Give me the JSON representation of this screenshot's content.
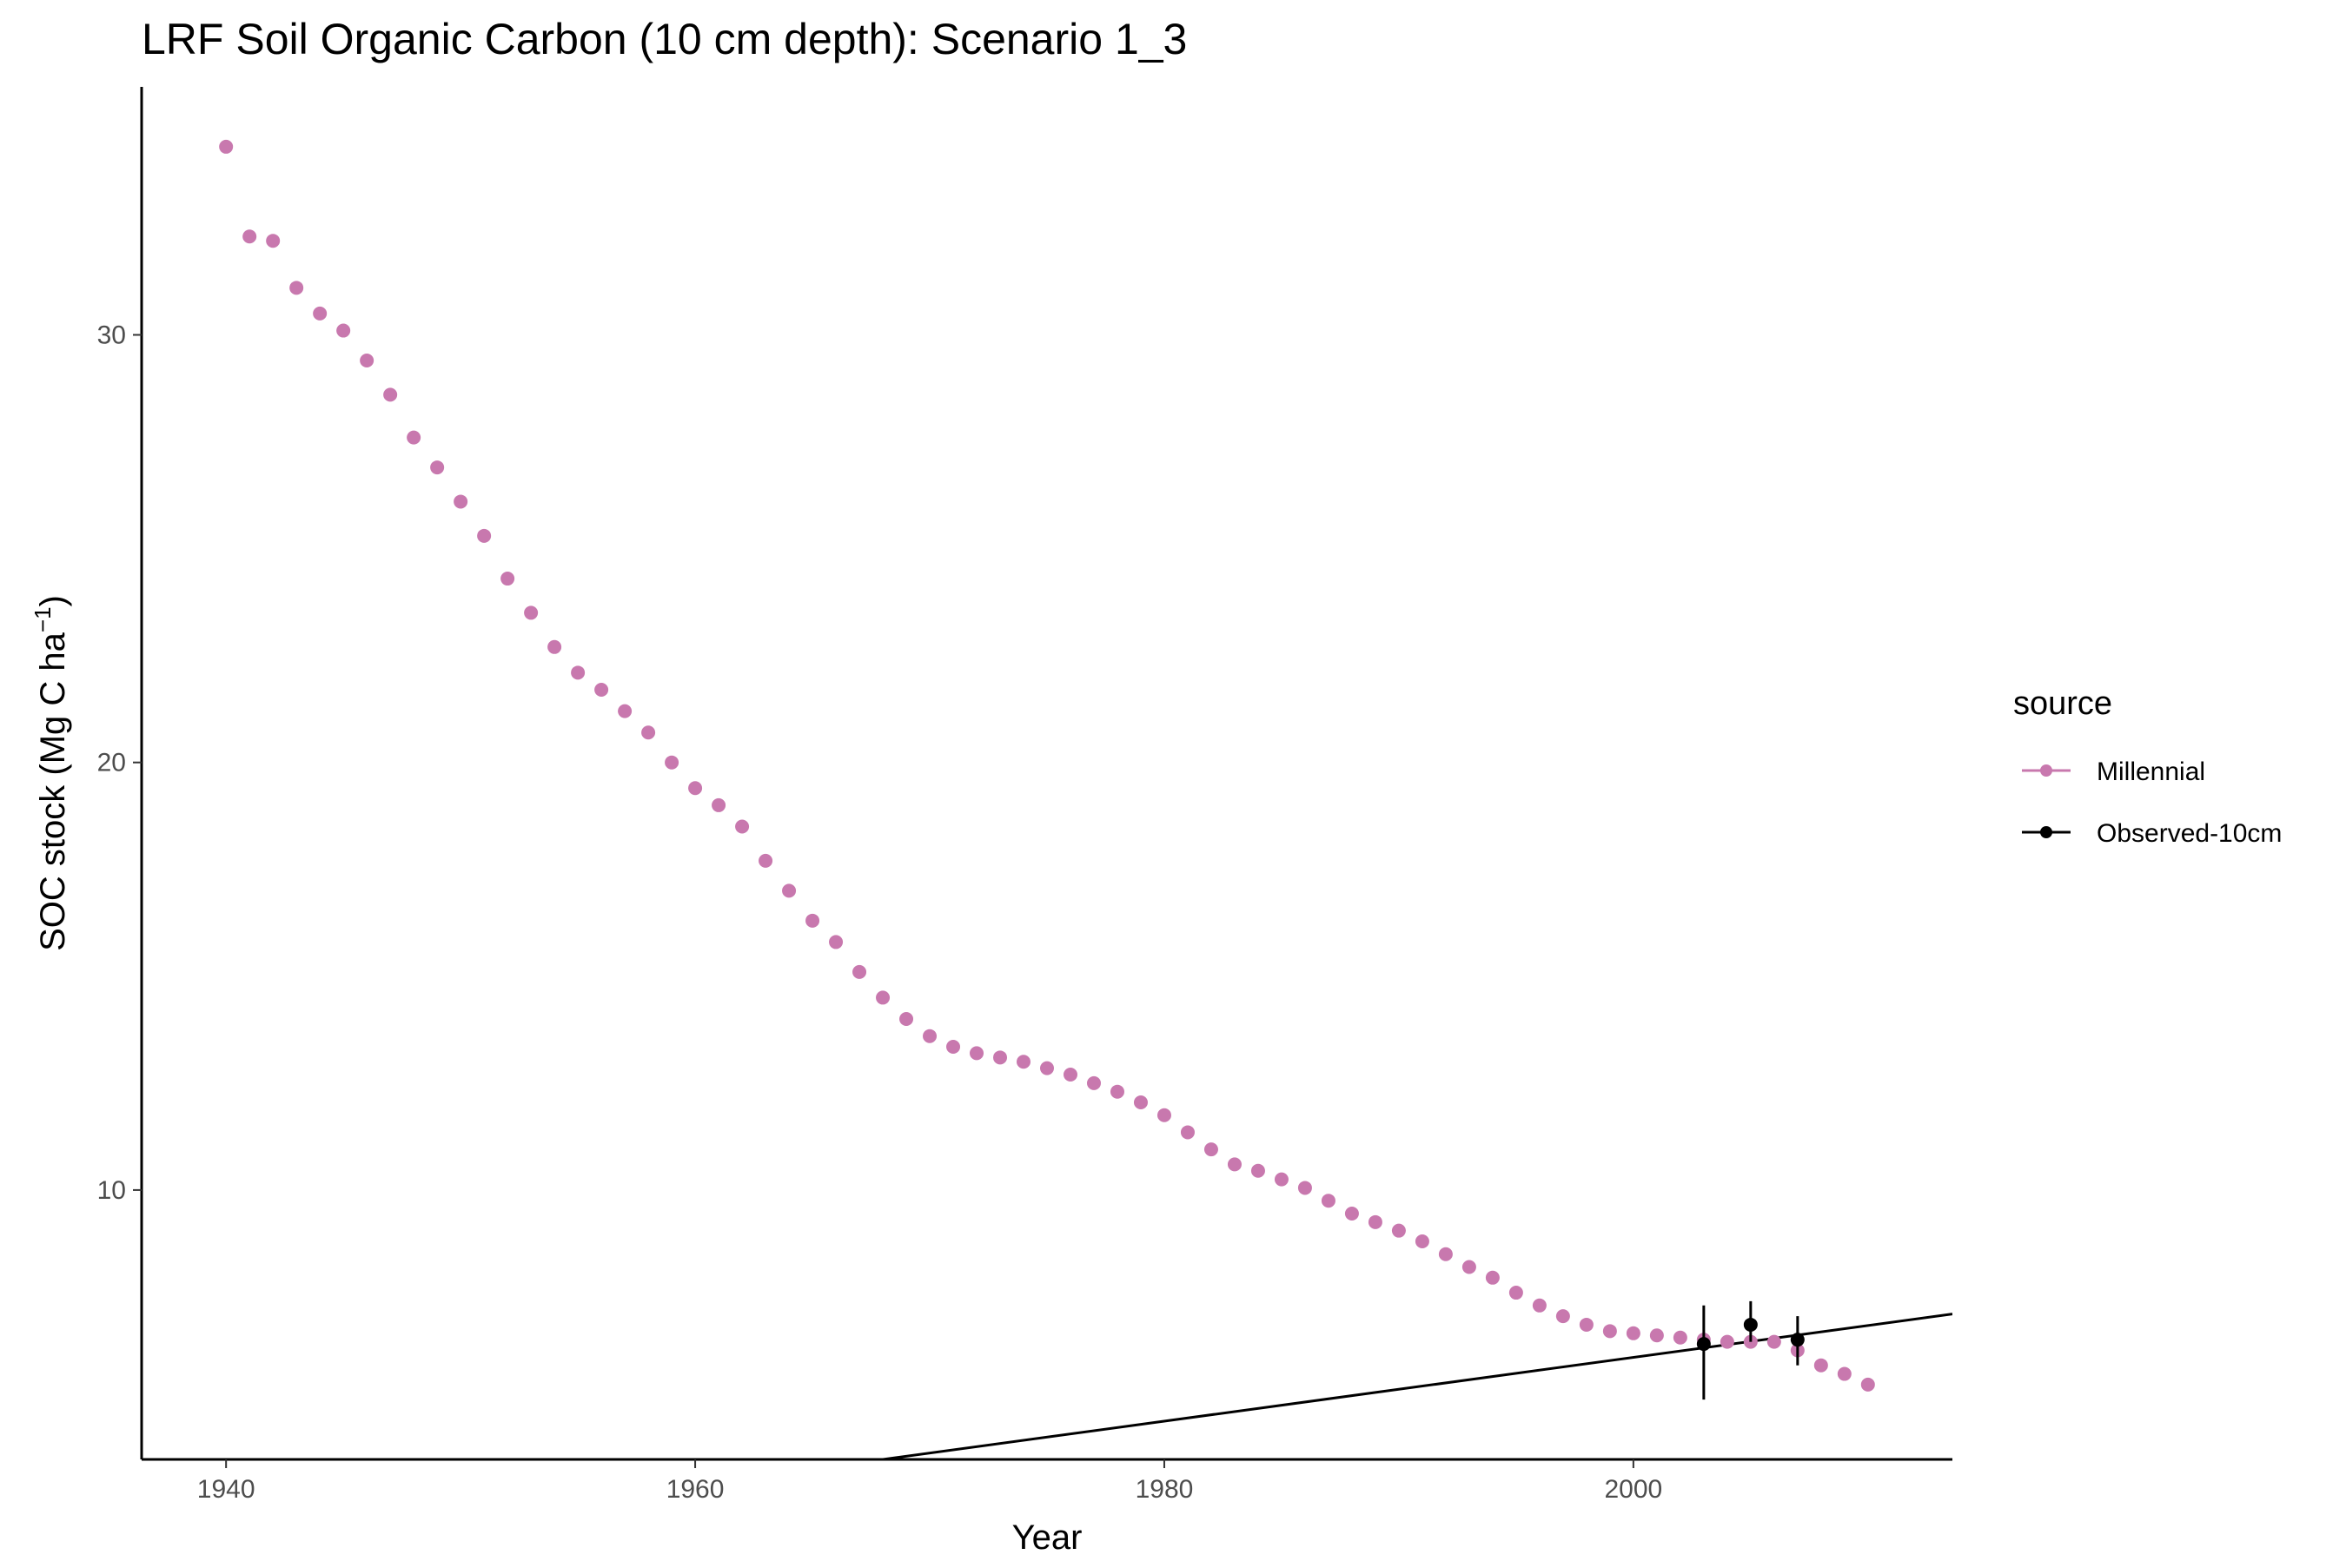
{
  "chart_data": {
    "type": "scatter",
    "title": "LRF Soil Organic Carbon (10 cm depth): Scenario  1_3",
    "xlabel": "Year",
    "ylabel": "SOC stock (Mg C ha",
    "ylabel_superscript": "−1",
    "ylabel_close": ")",
    "xlim": [
      1936.4,
      2013.6
    ],
    "ylim": [
      3.7,
      35.8
    ],
    "x_ticks": [
      1940,
      1960,
      1980,
      2000
    ],
    "y_ticks": [
      10,
      20,
      30
    ],
    "grid": false,
    "legend": {
      "title": "source",
      "position": "right",
      "items": [
        "Millennial",
        "Observed-10cm"
      ]
    },
    "series": [
      {
        "name": "Millennial",
        "color": "#c878ae",
        "x": [
          1940,
          1941,
          1942,
          1943,
          1944,
          1945,
          1946,
          1947,
          1948,
          1949,
          1950,
          1951,
          1952,
          1953,
          1954,
          1955,
          1956,
          1957,
          1958,
          1959,
          1960,
          1961,
          1962,
          1963,
          1964,
          1965,
          1966,
          1967,
          1968,
          1969,
          1970,
          1971,
          1972,
          1973,
          1974,
          1975,
          1976,
          1977,
          1978,
          1979,
          1980,
          1981,
          1982,
          1983,
          1984,
          1985,
          1986,
          1987,
          1988,
          1989,
          1990,
          1991,
          1992,
          1993,
          1994,
          1995,
          1996,
          1997,
          1998,
          1999,
          2000,
          2001,
          2002,
          2003,
          2004,
          2005,
          2006,
          2007,
          2008,
          2009,
          2010
        ],
        "y": [
          34.4,
          32.3,
          32.2,
          31.1,
          30.5,
          30.1,
          29.4,
          28.6,
          27.6,
          26.9,
          26.1,
          25.3,
          24.3,
          23.5,
          22.7,
          22.1,
          21.7,
          21.2,
          20.7,
          20.0,
          19.4,
          19.0,
          18.5,
          17.7,
          17.0,
          16.3,
          15.8,
          15.1,
          14.5,
          14.0,
          13.6,
          13.35,
          13.2,
          13.1,
          13.0,
          12.85,
          12.7,
          12.5,
          12.3,
          12.05,
          11.75,
          11.35,
          10.95,
          10.6,
          10.45,
          10.25,
          10.05,
          9.75,
          9.45,
          9.25,
          9.05,
          8.8,
          8.5,
          8.2,
          7.95,
          7.6,
          7.3,
          7.05,
          6.85,
          6.7,
          6.65,
          6.6,
          6.55,
          6.5,
          6.45,
          6.45,
          6.45,
          6.25,
          5.9,
          5.7,
          5.45
        ]
      },
      {
        "name": "Observed-10cm",
        "color": "#000000",
        "x": [
          2003,
          2005,
          2007
        ],
        "y": [
          6.4,
          6.85,
          6.5
        ],
        "ymin": [
          5.1,
          6.45,
          5.9
        ],
        "ymax": [
          7.3,
          7.4,
          7.05
        ]
      }
    ],
    "trend_line": {
      "color": "#000000",
      "x": [
        1968,
        2013.6
      ],
      "y": [
        3.7,
        7.1
      ]
    }
  }
}
